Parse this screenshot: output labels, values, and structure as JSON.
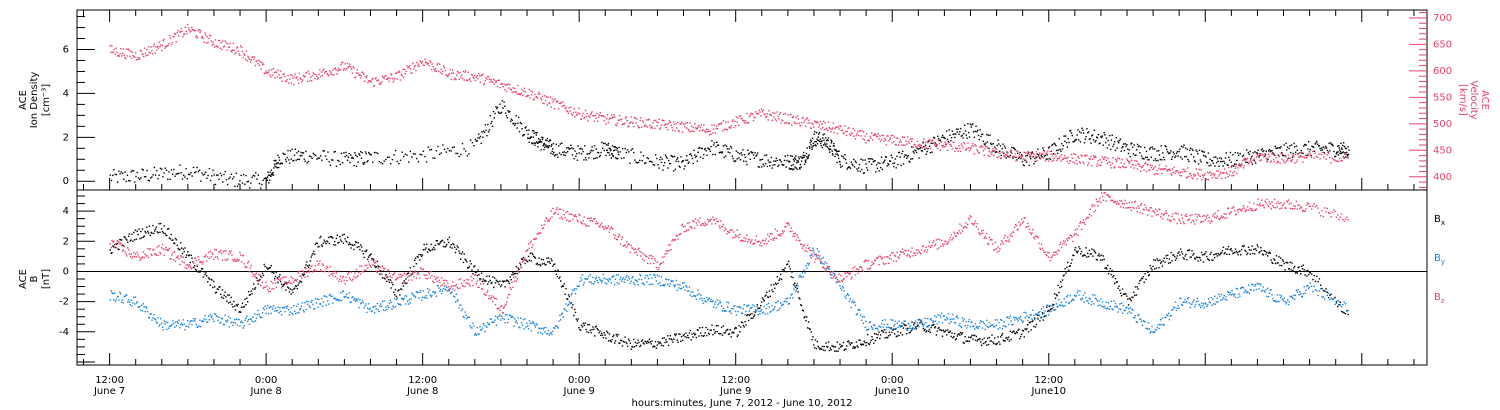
{
  "chart_data": [
    {
      "type": "scatter",
      "panel": "top",
      "ylabel_line1": "ACE",
      "ylabel_line2": "Ion Density",
      "ylabel_line3": "[cm⁻³]",
      "ylim": [
        -0.4,
        7.8
      ],
      "yticks": [
        "0",
        "2",
        "4",
        "6"
      ],
      "ylabel_right_line1": "ACE",
      "ylabel_right_line2": "Velocity",
      "ylabel_right_line3": "[km/s]",
      "ylim_right": [
        375,
        715
      ],
      "yticks_right": [
        "400",
        "450",
        "500",
        "550",
        "600",
        "650",
        "700"
      ],
      "series": [
        {
          "color": "#000000",
          "axis": "left",
          "hours": [
            0,
            3,
            6,
            9,
            12,
            13,
            15,
            18,
            20,
            24,
            28,
            30,
            32,
            33,
            34,
            36,
            38,
            39,
            42,
            44,
            46,
            48,
            50,
            52,
            53,
            54,
            55,
            56,
            58,
            60,
            62,
            64,
            66,
            68,
            70,
            72,
            74,
            76,
            78,
            80,
            82,
            84,
            86,
            88,
            90,
            92,
            94,
            95
          ],
          "values": [
            0.2,
            0.3,
            0.5,
            0.1,
            0.05,
            1.1,
            1.2,
            1.0,
            1.1,
            1.2,
            1.6,
            3.5,
            2.2,
            1.8,
            1.5,
            1.3,
            1.5,
            1.3,
            0.9,
            0.8,
            1.6,
            1.2,
            1.0,
            0.9,
            0.9,
            2.0,
            1.8,
            1.0,
            0.7,
            0.9,
            1.4,
            2.0,
            2.4,
            1.6,
            1.0,
            1.3,
            2.2,
            2.0,
            1.5,
            1.3,
            1.4,
            1.0,
            1.0,
            1.2,
            1.4,
            1.5,
            1.5,
            1.4
          ]
        },
        {
          "color": "#e8416a",
          "axis": "right",
          "hours": [
            0,
            2,
            4,
            6,
            8,
            10,
            12,
            14,
            16,
            18,
            20,
            22,
            24,
            26,
            28,
            30,
            32,
            34,
            36,
            38,
            40,
            42,
            44,
            46,
            48,
            50,
            52,
            54,
            56,
            58,
            60,
            62,
            64,
            66,
            68,
            70,
            72,
            74,
            76,
            78,
            80,
            82,
            84,
            86,
            88,
            90,
            92,
            95
          ],
          "values": [
            640,
            630,
            650,
            680,
            655,
            640,
            600,
            585,
            595,
            610,
            580,
            590,
            620,
            595,
            590,
            575,
            560,
            540,
            520,
            510,
            505,
            500,
            495,
            490,
            505,
            520,
            510,
            500,
            490,
            475,
            470,
            465,
            460,
            455,
            445,
            440,
            440,
            435,
            430,
            425,
            415,
            410,
            405,
            410,
            440,
            435,
            440,
            435
          ]
        }
      ]
    },
    {
      "type": "scatter",
      "panel": "bottom",
      "ylabel_line1": "ACE",
      "ylabel_line2": "B",
      "ylabel_line3": "[nT]",
      "ylim": [
        -6.2,
        5.4
      ],
      "yticks": [
        "-4",
        "-2",
        "0",
        "2",
        "4"
      ],
      "legend": [
        {
          "base": "B",
          "sub": "x",
          "color": "#000000"
        },
        {
          "base": "B",
          "sub": "y",
          "color": "#1a82e0"
        },
        {
          "base": "B",
          "sub": "z",
          "color": "#e8416a"
        }
      ],
      "series": [
        {
          "name": "Bx",
          "color": "#000000",
          "hours": [
            0,
            2,
            4,
            6,
            8,
            10,
            12,
            14,
            16,
            18,
            20,
            22,
            24,
            26,
            28,
            30,
            32,
            34,
            36,
            38,
            40,
            42,
            44,
            46,
            48,
            50,
            52,
            54,
            56,
            58,
            60,
            62,
            64,
            66,
            68,
            70,
            72,
            74,
            76,
            78,
            80,
            82,
            84,
            86,
            88,
            90,
            92,
            95
          ],
          "values": [
            1.5,
            2.5,
            3.0,
            1.0,
            -1.0,
            -2.5,
            0.5,
            -1.5,
            2.0,
            2.2,
            1.0,
            -1.5,
            1.5,
            2.0,
            0.0,
            -1.0,
            1.0,
            0.5,
            -3.5,
            -4.2,
            -4.8,
            -4.7,
            -4.3,
            -3.8,
            -4.0,
            -2.0,
            0.5,
            -4.8,
            -5.0,
            -4.5,
            -4.0,
            -3.5,
            -4.0,
            -4.5,
            -4.5,
            -4.0,
            -2.5,
            1.5,
            1.0,
            -2.0,
            0.5,
            1.2,
            1.0,
            1.5,
            1.5,
            0.5,
            0.0,
            -3.0
          ]
        },
        {
          "name": "By",
          "color": "#1a82e0",
          "hours": [
            0,
            2,
            4,
            6,
            8,
            10,
            12,
            14,
            16,
            18,
            20,
            22,
            24,
            26,
            28,
            30,
            32,
            34,
            36,
            38,
            40,
            42,
            44,
            46,
            48,
            50,
            52,
            54,
            56,
            58,
            60,
            62,
            64,
            66,
            68,
            70,
            72,
            74,
            76,
            78,
            80,
            82,
            84,
            86,
            88,
            90,
            92,
            95
          ],
          "values": [
            -1.5,
            -2.0,
            -3.5,
            -3.5,
            -3.0,
            -3.5,
            -2.5,
            -2.5,
            -2.0,
            -1.5,
            -2.5,
            -2.0,
            -1.5,
            -1.0,
            -4.0,
            -3.0,
            -3.5,
            -4.0,
            -0.5,
            -0.5,
            -0.5,
            -0.5,
            -1.0,
            -2.0,
            -2.5,
            -2.5,
            -2.0,
            1.5,
            -1.0,
            -3.5,
            -3.5,
            -3.5,
            -3.0,
            -3.5,
            -3.5,
            -3.0,
            -2.5,
            -1.5,
            -2.0,
            -2.5,
            -4.0,
            -2.0,
            -2.0,
            -1.5,
            -1.0,
            -2.0,
            -1.0,
            -2.5
          ]
        },
        {
          "name": "Bz",
          "color": "#e8416a",
          "hours": [
            0,
            2,
            4,
            6,
            8,
            10,
            12,
            14,
            16,
            18,
            20,
            22,
            24,
            26,
            28,
            30,
            32,
            34,
            36,
            38,
            40,
            42,
            44,
            46,
            48,
            50,
            52,
            54,
            56,
            58,
            60,
            62,
            64,
            66,
            68,
            70,
            72,
            74,
            76,
            78,
            80,
            82,
            84,
            86,
            88,
            90,
            92,
            95
          ],
          "values": [
            2.0,
            1.0,
            1.5,
            0.5,
            1.2,
            1.0,
            -1.0,
            -0.5,
            0.5,
            -0.5,
            0.5,
            -0.5,
            0.0,
            -1.0,
            -0.5,
            -2.5,
            1.5,
            4.0,
            3.5,
            3.0,
            1.5,
            0.5,
            3.0,
            3.5,
            2.5,
            2.0,
            3.0,
            1.0,
            -0.5,
            0.5,
            1.0,
            1.5,
            2.0,
            3.5,
            1.5,
            3.5,
            1.0,
            2.5,
            5.0,
            4.5,
            4.0,
            3.5,
            3.5,
            4.0,
            4.5,
            4.5,
            4.3,
            3.5
          ]
        }
      ]
    }
  ],
  "x_axis": {
    "hours_range": [
      -2.5,
      101
    ],
    "ticks": [
      {
        "hour": 0,
        "time": "12:00",
        "day": "June 7"
      },
      {
        "hour": 12,
        "time": "0:00",
        "day": "June 8"
      },
      {
        "hour": 24,
        "time": "12:00",
        "day": "June 8"
      },
      {
        "hour": 36,
        "time": "0:00",
        "day": "June 9"
      },
      {
        "hour": 48,
        "time": "12:00",
        "day": "June 9"
      },
      {
        "hour": 60,
        "time": "0:00",
        "day": "June10"
      },
      {
        "hour": 72,
        "time": "12:00",
        "day": "June10"
      }
    ],
    "minor_tick_hours": 2,
    "label": "hours:minutes, June  7, 2012 - June 10, 2012"
  }
}
